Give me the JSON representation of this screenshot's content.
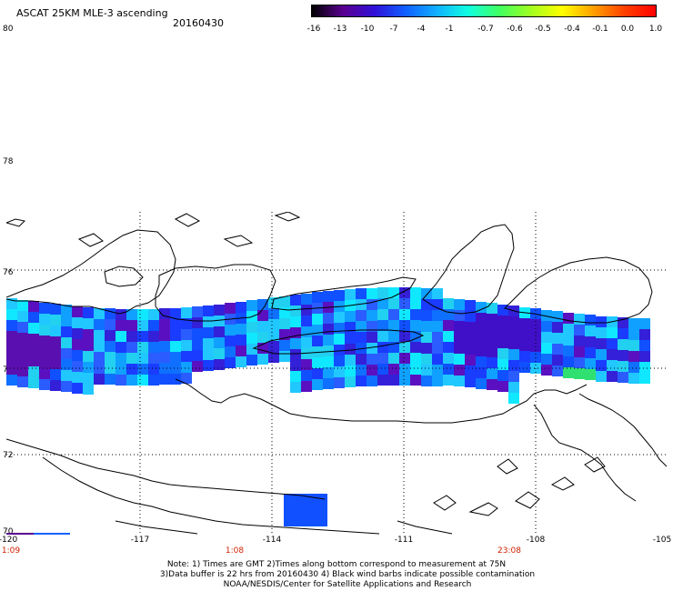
{
  "header": {
    "title": "ASCAT 25KM MLE-3 ascending",
    "date": "20160430"
  },
  "colorbar": {
    "labels": [
      "-16",
      "-13",
      "-10",
      "-7",
      "-4",
      "-1",
      "-0.7",
      "-0.6",
      "-0.5",
      "-0.4",
      "-0.1",
      "0.0",
      "1.0"
    ],
    "colors": [
      "#000000",
      "#5a0090",
      "#3010d8",
      "#1060ff",
      "#10b0ff",
      "#10ffe0",
      "#40ff60",
      "#a0ff20",
      "#ffff00",
      "#ffa000",
      "#ff4000",
      "#ff0000"
    ]
  },
  "latitude_labels": [
    "80",
    "78",
    "76",
    "74",
    "72",
    "70"
  ],
  "longitude_labels": [
    "-120",
    "-117",
    "-114",
    "-111",
    "-108",
    "-105"
  ],
  "time_labels": [
    "1:09",
    "1:08",
    "23:08"
  ],
  "notes": {
    "line1": "Note: 1) Times are GMT 2)Times along bottom correspond to measurement at 75N",
    "line2": "3)Data buffer is 22 hrs from 20160430 4) Black wind barbs indicate possible contamination",
    "line3": "NOAA/NESDIS/Center for Satellite Applications and Research"
  }
}
